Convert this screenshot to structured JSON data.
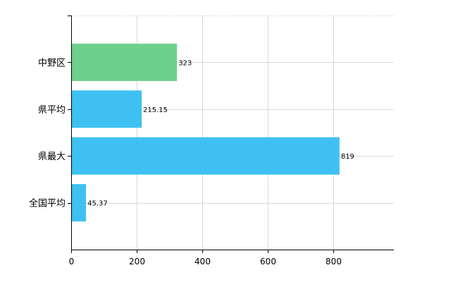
{
  "chart_data": {
    "type": "bar",
    "orientation": "horizontal",
    "categories": [
      "中野区",
      "県平均",
      "県最大",
      "全国平均"
    ],
    "values": [
      323,
      215.15,
      819,
      45.37
    ],
    "value_labels": [
      "323",
      "215.15",
      "819",
      "45.37"
    ],
    "colors": [
      "#6fd08c",
      "#3ec1f2",
      "#3ec1f2",
      "#3ec1f2"
    ],
    "x_ticks": [
      "0",
      "200",
      "400",
      "600",
      "800"
    ],
    "xlim": [
      0,
      980
    ],
    "grid": true,
    "title": "",
    "xlabel": "",
    "ylabel": ""
  }
}
